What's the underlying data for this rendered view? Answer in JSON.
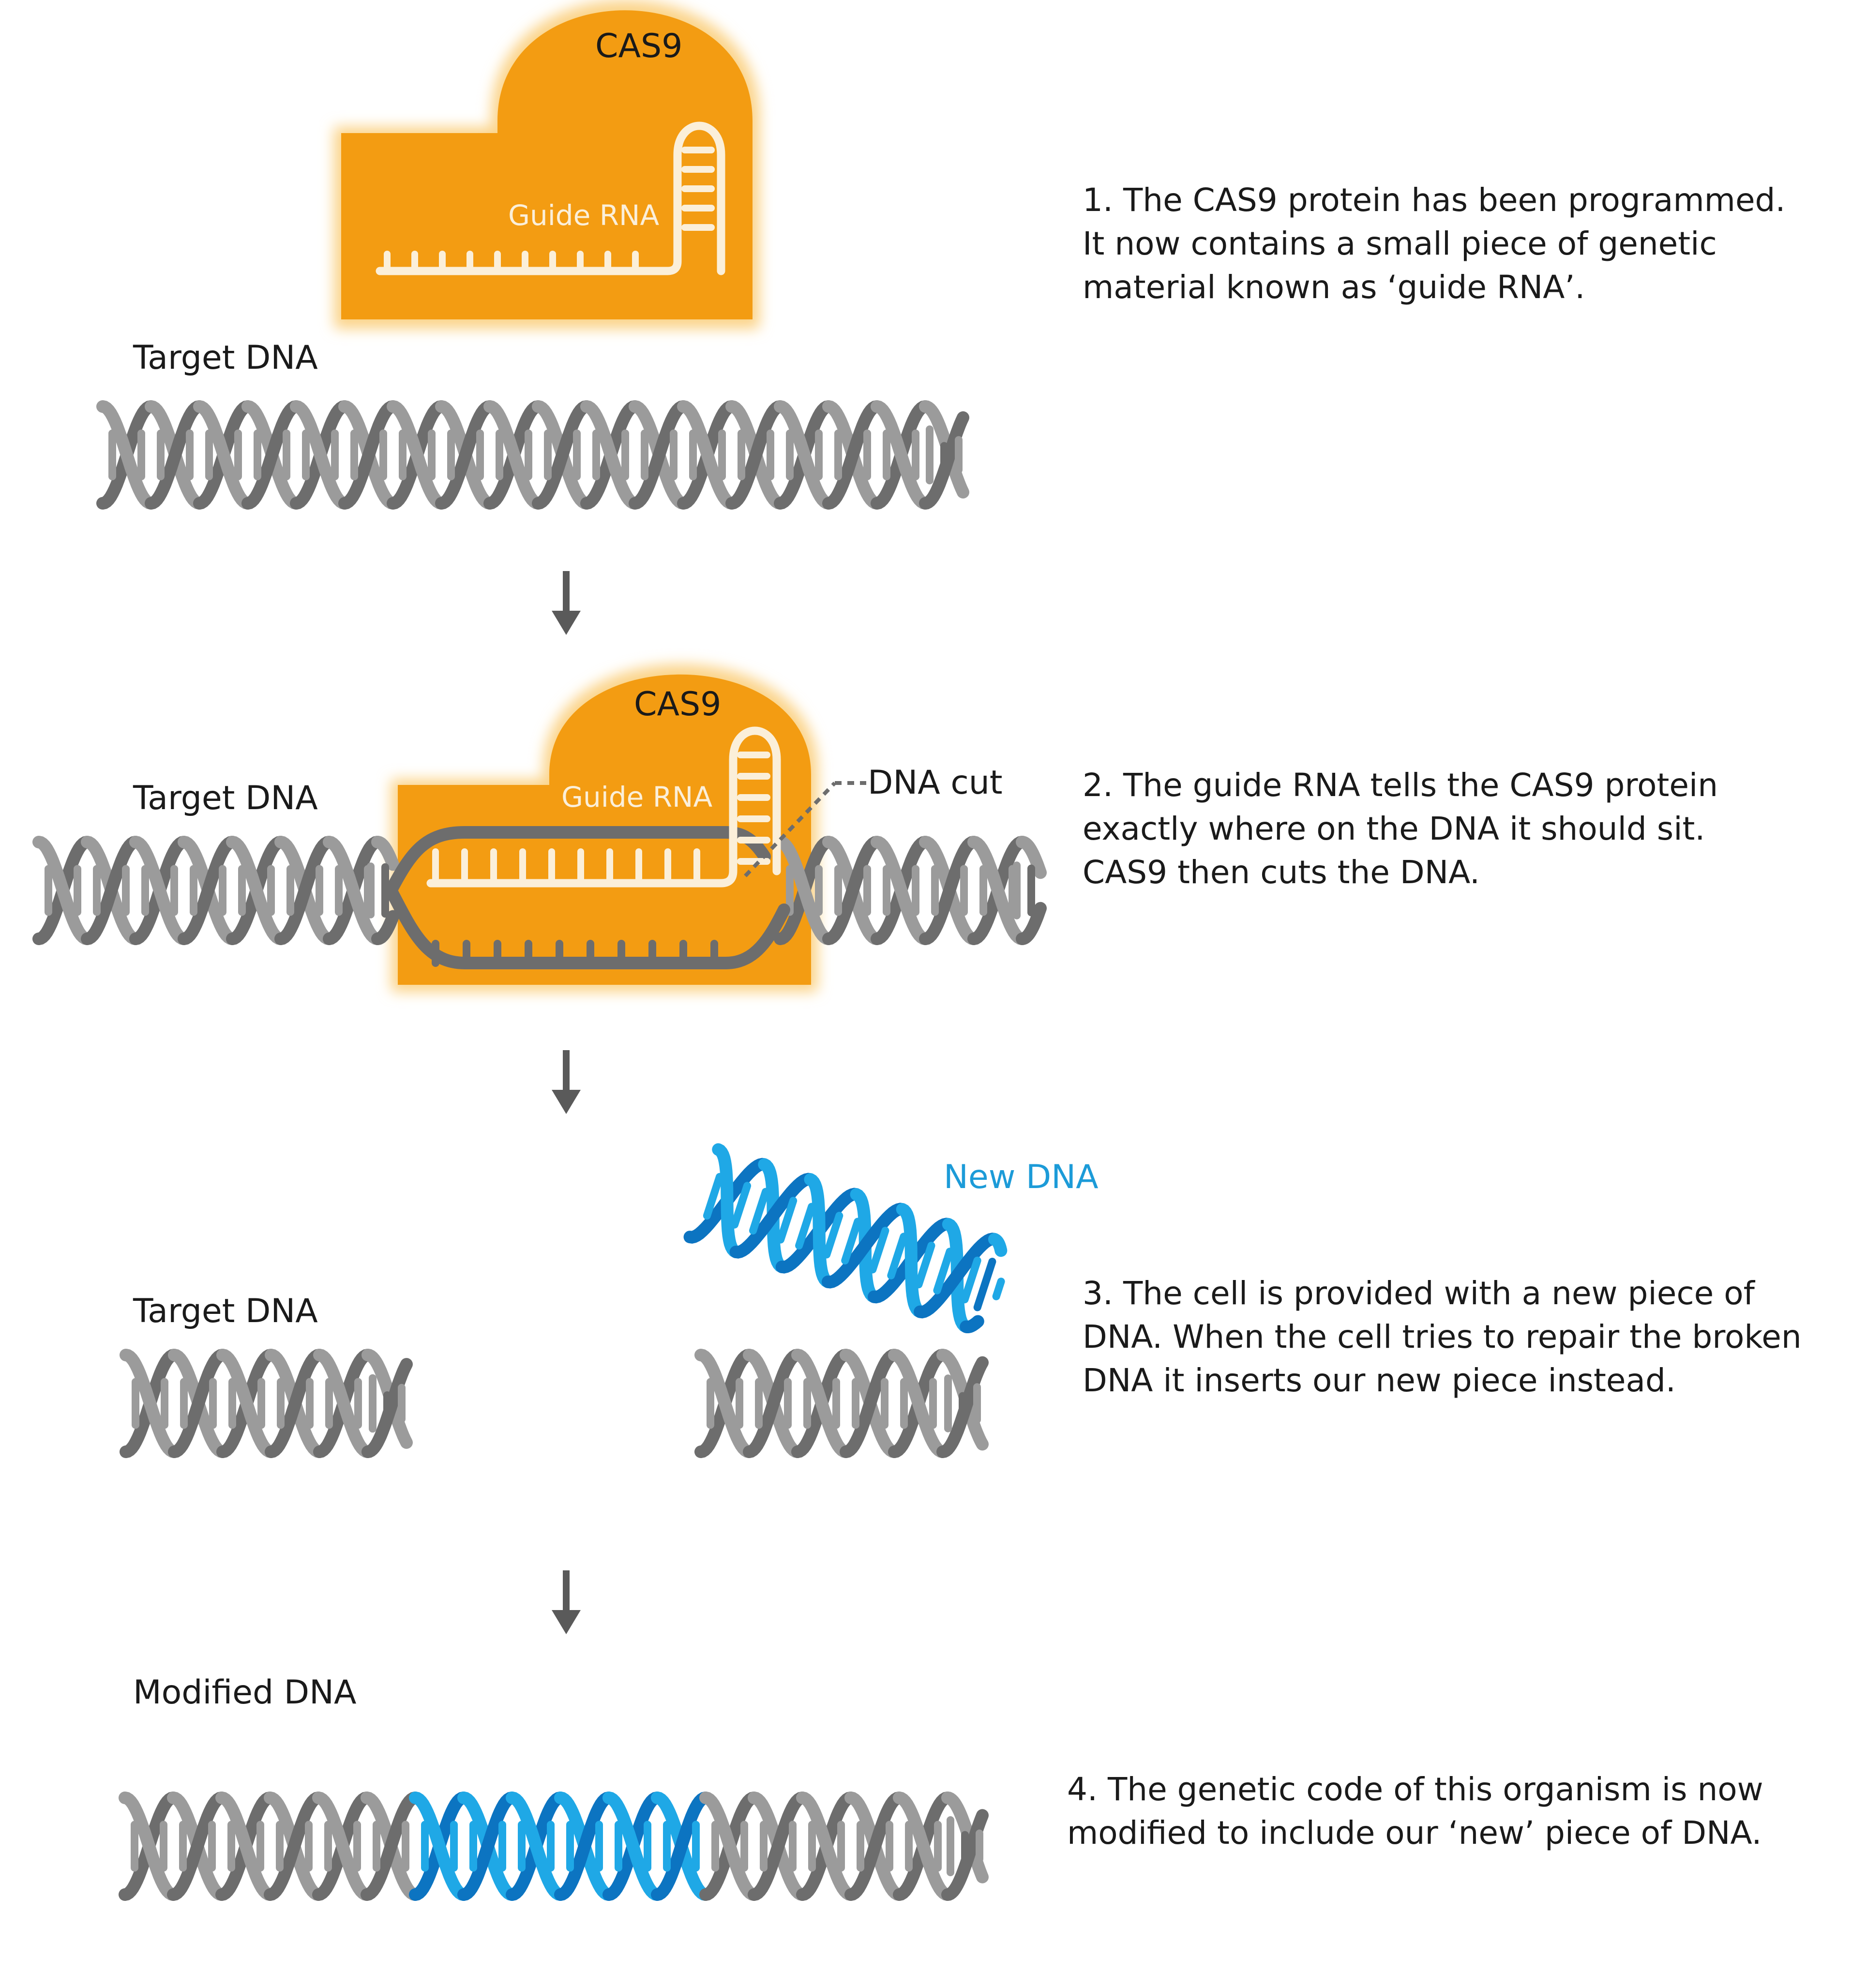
{
  "colors": {
    "cas9": "#F39C12",
    "cas9_glow": "#FBD48A",
    "dna_dark": "#6D6D6D",
    "dna_light": "#9B9B9B",
    "new_dna_dark": "#0C74C1",
    "new_dna_light": "#1FA8E6",
    "rna": "#FBEFD9",
    "text": "#1a1a1a",
    "new_dna_label": "#1C9BD8"
  },
  "step1": {
    "cas9_label": "CAS9",
    "guide_rna_label": "Guide RNA",
    "target_label": "Target DNA",
    "description": [
      "1. The CAS9 protein has been programmed.",
      "It now contains a small piece of genetic",
      "material known as ‘guide RNA’."
    ]
  },
  "step2": {
    "cas9_label": "CAS9",
    "guide_rna_label": "Guide RNA",
    "target_label": "Target DNA",
    "cut_label": "DNA cut",
    "description": [
      "2. The guide RNA tells the CAS9 protein",
      "exactly where on the DNA it should sit.",
      "CAS9 then cuts the DNA."
    ]
  },
  "step3": {
    "target_label": "Target DNA",
    "new_dna_label": "New DNA",
    "description": [
      "3. The cell is provided with a new piece of",
      "DNA. When the cell tries to repair the broken",
      "DNA it inserts our new piece instead."
    ]
  },
  "step4": {
    "modified_label": "Modified DNA",
    "description": [
      "4. The genetic code of this organism is now",
      "modified to include our ‘new’ piece of DNA."
    ]
  },
  "icons": {
    "flow_arrow": "down-arrow-icon"
  }
}
